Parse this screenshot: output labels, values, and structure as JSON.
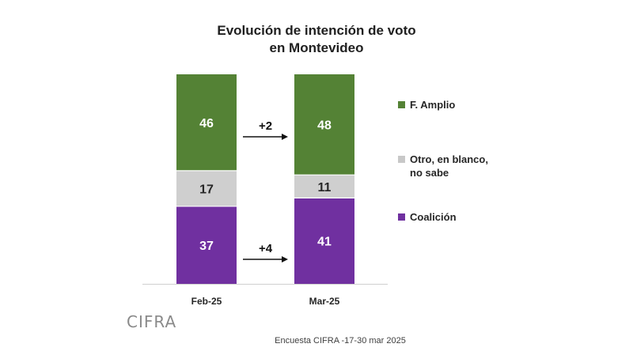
{
  "chart_data": {
    "type": "stacked-bar",
    "title_line1": "Evolución de intención de voto",
    "title_line2": "en Montevideo",
    "categories": [
      "Feb-25",
      "Mar-25"
    ],
    "series": [
      {
        "name": "Coalición",
        "values": [
          37,
          41
        ],
        "color": "#7030a0",
        "label_color": "#ffffff"
      },
      {
        "name": "Otro, en blanco, no sabe",
        "values": [
          17,
          11
        ],
        "color": "#cfcfcf",
        "label_color": "#262626"
      },
      {
        "name": "F. Amplio",
        "values": [
          46,
          48
        ],
        "color": "#548235",
        "label_color": "#ffffff"
      }
    ],
    "annotations": [
      {
        "text": "+2",
        "series": "F. Amplio"
      },
      {
        "text": "+4",
        "series": "Coalición"
      }
    ],
    "ylim": [
      0,
      100
    ]
  },
  "legend": [
    {
      "label_line1": "F. Amplio",
      "label_line2": "",
      "color": "#548235"
    },
    {
      "label_line1": "Otro, en blanco,",
      "label_line2": "no sabe",
      "color": "#c8c8c8"
    },
    {
      "label_line1": "Coalición",
      "label_line2": "",
      "color": "#7030a0"
    }
  ],
  "logo_text": "CIFRA",
  "source_text": "Encuesta CIFRA -17-30 mar 2025"
}
